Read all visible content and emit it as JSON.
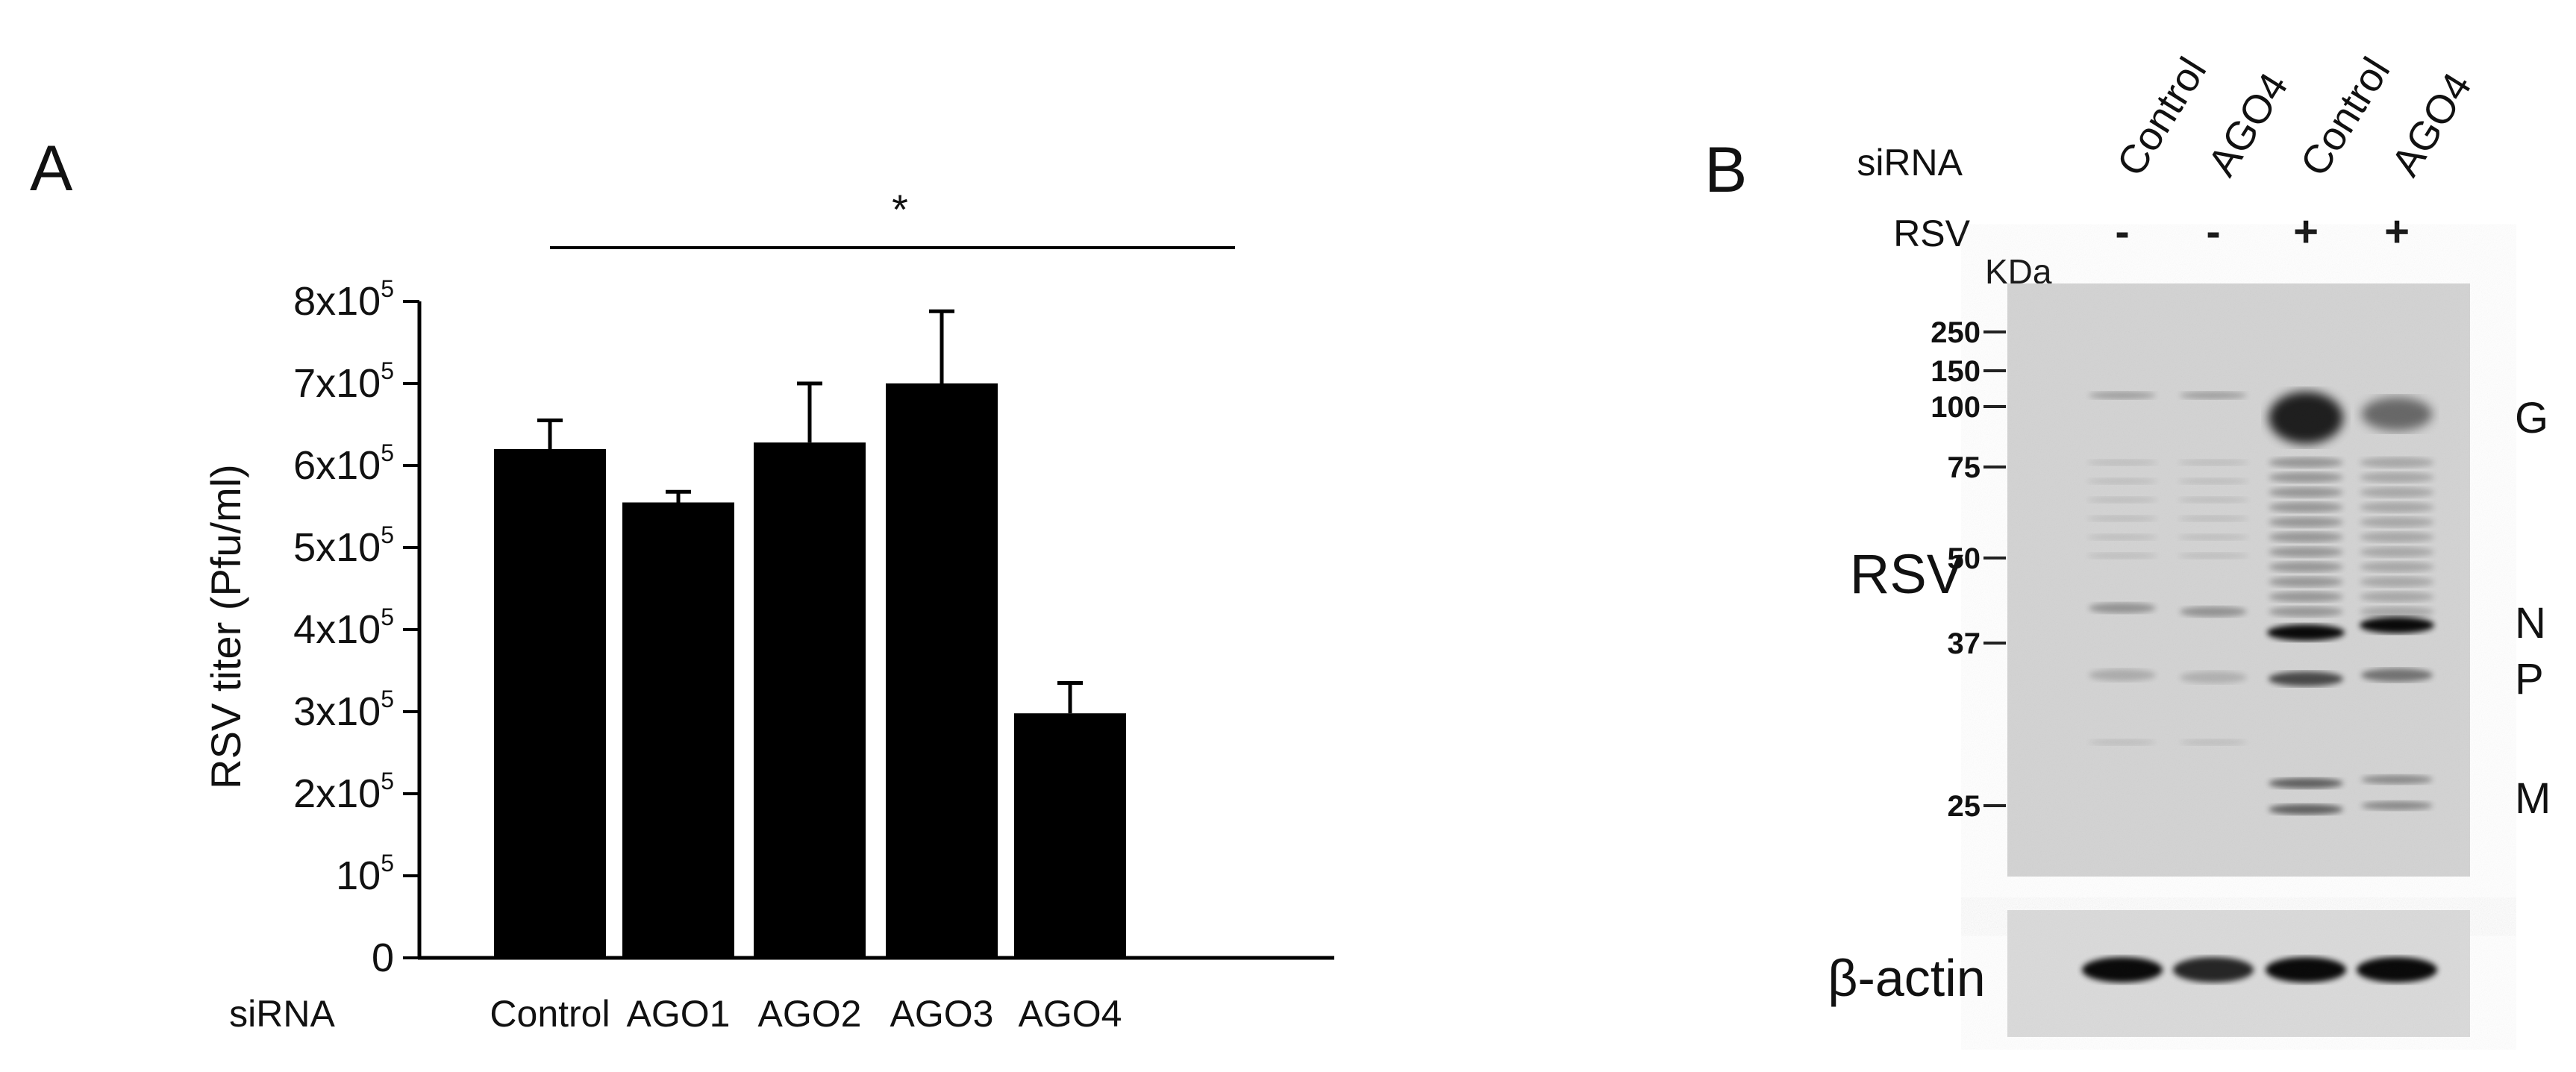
{
  "panel_a": {
    "letter": "A",
    "significance_mark": "*",
    "xaxis_row_label": "siRNA",
    "chart_data": {
      "type": "bar",
      "categories": [
        "Control",
        "AGO1",
        "AGO2",
        "AGO3",
        "AGO4"
      ],
      "values": [
        620000,
        555000,
        628000,
        700000,
        298000
      ],
      "errors": [
        35000,
        13000,
        72000,
        88000,
        37000
      ],
      "ylabel": "RSV titer (Pfu/ml)",
      "ylim": [
        0,
        800000
      ],
      "ytick_labels": [
        {
          "base": "0",
          "exp": ""
        },
        {
          "base": "10",
          "exp": "5"
        },
        {
          "base": "2x10",
          "exp": "5"
        },
        {
          "base": "3x10",
          "exp": "5"
        },
        {
          "base": "4x10",
          "exp": "5"
        },
        {
          "base": "5x10",
          "exp": "5"
        },
        {
          "base": "6x10",
          "exp": "5"
        },
        {
          "base": "7x10",
          "exp": "5"
        },
        {
          "base": "8x10",
          "exp": "5"
        }
      ],
      "bar_color": "#000000",
      "grid": false,
      "significance": {
        "from": "Control",
        "to": "AGO4",
        "mark": "*"
      }
    }
  },
  "panel_b": {
    "letter": "B",
    "row_labels": {
      "sirna": "siRNA",
      "rsv": "RSV",
      "kda": "KDa"
    },
    "lanes": [
      {
        "sirna": "Control",
        "rsv": "-"
      },
      {
        "sirna": "AGO4",
        "rsv": "-"
      },
      {
        "sirna": "Control",
        "rsv": "+"
      },
      {
        "sirna": "AGO4",
        "rsv": "+"
      }
    ],
    "markers": [
      "250",
      "150",
      "100",
      "75",
      "50",
      "37",
      "25"
    ],
    "blot_label": "RSV",
    "loading_label": "β-actin",
    "bands": [
      "G",
      "N",
      "P",
      "M"
    ]
  }
}
